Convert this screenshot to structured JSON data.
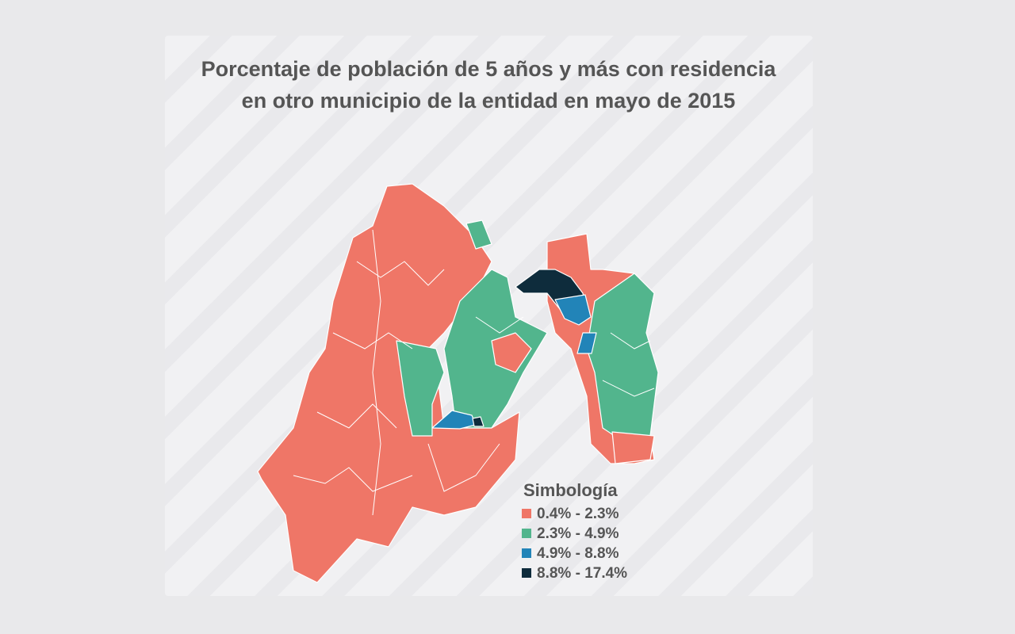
{
  "title_lines": [
    "Porcentaje de población de 5 años y más con residencia",
    "en otro municipio de la entidad en mayo de 2015"
  ],
  "legend": {
    "title": "Simbología",
    "items": [
      {
        "label": "0.4% - 2.3%",
        "color": "#ef7667"
      },
      {
        "label": "2.3% - 4.9%",
        "color": "#52b58d"
      },
      {
        "label": "4.9% - 8.8%",
        "color": "#2284b8"
      },
      {
        "label": "8.8% - 17.4%",
        "color": "#0e2c3c"
      }
    ]
  }
}
